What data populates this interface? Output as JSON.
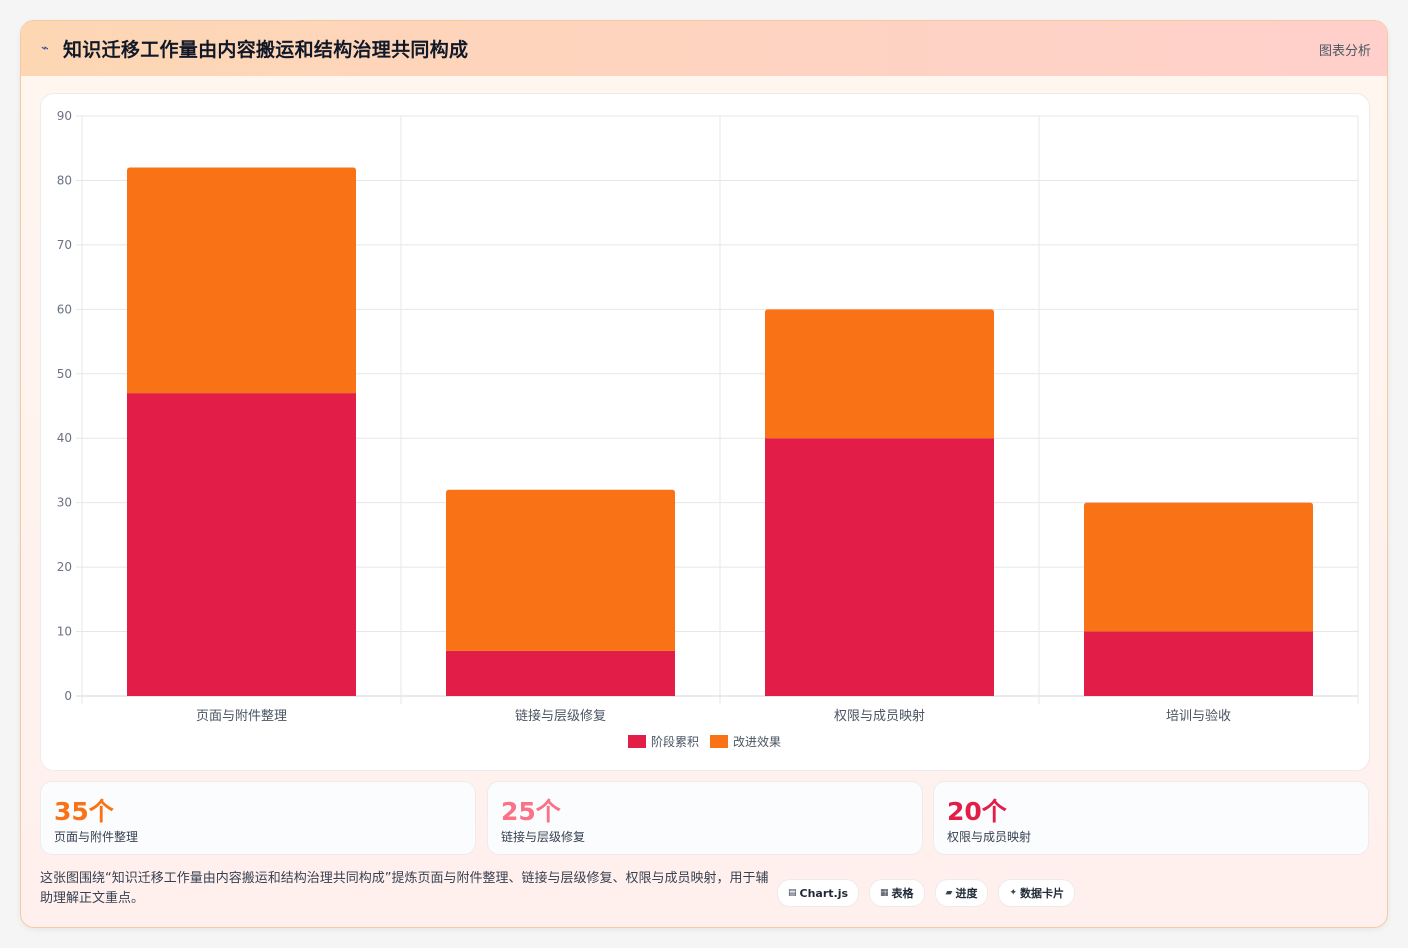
{
  "header": {
    "icon": "line-chart-icon",
    "title": "知识迁移工作量由内容搬运和结构治理共同构成",
    "tag": "图表分析"
  },
  "chart_data": {
    "type": "bar",
    "stacked": true,
    "categories": [
      "页面与附件整理",
      "链接与层级修复",
      "权限与成员映射",
      "培训与验收"
    ],
    "series": [
      {
        "name": "阶段累积",
        "color": "#e11d48",
        "values": [
          47,
          7,
          40,
          10
        ]
      },
      {
        "name": "改进效果",
        "color": "#f97316",
        "values": [
          35,
          25,
          20,
          20
        ]
      }
    ],
    "ylim": [
      0,
      90
    ],
    "yticks": [
      0,
      10,
      20,
      30,
      40,
      50,
      60,
      70,
      80,
      90
    ],
    "grid": true,
    "legend": "bottom-center"
  },
  "stats": [
    {
      "value": "35个",
      "label": "页面与附件整理",
      "color": "#f97316"
    },
    {
      "value": "25个",
      "label": "链接与层级修复",
      "color": "#fb7185"
    },
    {
      "value": "20个",
      "label": "权限与成员映射",
      "color": "#e11d48"
    }
  ],
  "footer": {
    "text": "这张图围绕“知识迁移工作量由内容搬运和结构治理共同构成”提炼页面与附件整理、链接与层级修复、权限与成员映射，用于辅助理解正文重点。",
    "chips": [
      {
        "icon": "chart-icon",
        "glyph": "▤",
        "label": "Chart.js"
      },
      {
        "icon": "table-icon",
        "glyph": "▦",
        "label": "表格"
      },
      {
        "icon": "progress-icon",
        "glyph": "▰",
        "label": "进度"
      },
      {
        "icon": "data-card-icon",
        "glyph": "✦",
        "label": "数据卡片"
      }
    ]
  }
}
